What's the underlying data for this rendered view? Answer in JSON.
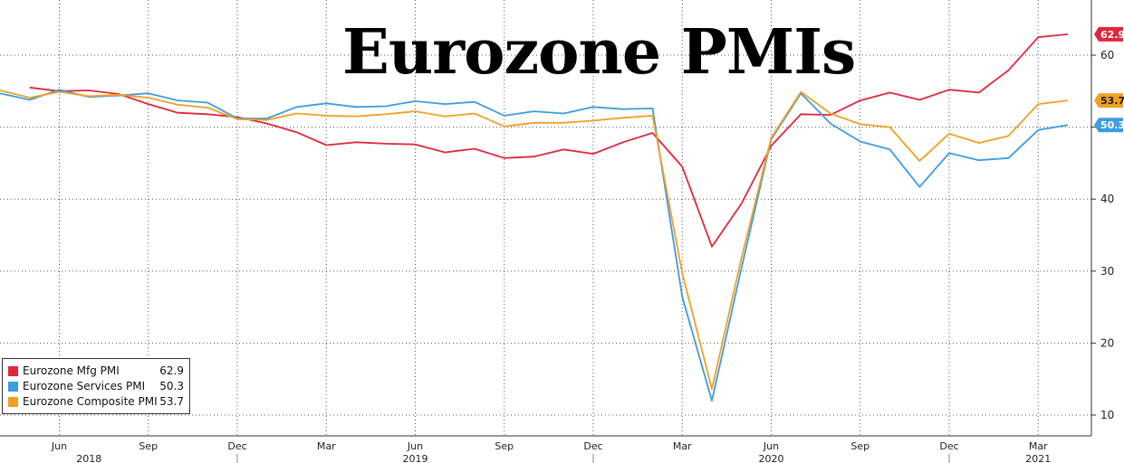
{
  "chart_data": {
    "type": "line",
    "title": "Eurozone PMIs",
    "ylim": [
      5,
      68
    ],
    "y_ticks": [
      10,
      20,
      30,
      40,
      50,
      60
    ],
    "x_month_ticks": [
      {
        "label": "Jun",
        "x": "2018-06"
      },
      {
        "label": "Sep",
        "x": "2018-09"
      },
      {
        "label": "Dec",
        "x": "2018-12"
      },
      {
        "label": "Mar",
        "x": "2019-03"
      },
      {
        "label": "Jun",
        "x": "2019-06"
      },
      {
        "label": "Sep",
        "x": "2019-09"
      },
      {
        "label": "Dec",
        "x": "2019-12"
      },
      {
        "label": "Mar",
        "x": "2020-03"
      },
      {
        "label": "Jun",
        "x": "2020-06"
      },
      {
        "label": "Sep",
        "x": "2020-09"
      },
      {
        "label": "Dec",
        "x": "2020-12"
      },
      {
        "label": "Mar",
        "x": "2021-03"
      }
    ],
    "x_year_ticks": [
      {
        "label": "2018",
        "x": "2018-07"
      },
      {
        "label": "2019",
        "x": "2019-06"
      },
      {
        "label": "2020",
        "x": "2020-06"
      },
      {
        "label": "2021",
        "x": "2021-03"
      }
    ],
    "grid": true,
    "legend_position": "bottom-left",
    "x": [
      "2018-04",
      "2018-05",
      "2018-06",
      "2018-07",
      "2018-08",
      "2018-09",
      "2018-10",
      "2018-11",
      "2018-12",
      "2019-01",
      "2019-02",
      "2019-03",
      "2019-04",
      "2019-05",
      "2019-06",
      "2019-07",
      "2019-08",
      "2019-09",
      "2019-10",
      "2019-11",
      "2019-12",
      "2020-01",
      "2020-02",
      "2020-03",
      "2020-04",
      "2020-05",
      "2020-06",
      "2020-07",
      "2020-08",
      "2020-09",
      "2020-10",
      "2020-11",
      "2020-12",
      "2021-01",
      "2021-02",
      "2021-03",
      "2021-04"
    ],
    "series": [
      {
        "name": "Eurozone Mfg PMI",
        "last": "62.9",
        "color": "#e0283c",
        "values": [
          null,
          55.5,
          55.0,
          55.1,
          54.6,
          53.2,
          52.0,
          51.8,
          51.4,
          50.5,
          49.3,
          47.5,
          47.9,
          47.7,
          47.6,
          46.5,
          47.0,
          45.7,
          45.9,
          46.9,
          46.3,
          47.9,
          49.2,
          44.5,
          33.4,
          39.4,
          47.4,
          51.8,
          51.7,
          53.7,
          54.8,
          53.8,
          55.2,
          54.8,
          57.9,
          62.5,
          62.9
        ]
      },
      {
        "name": "Eurozone Services PMI",
        "last": "50.3",
        "color": "#3c9de0",
        "values": [
          54.7,
          53.8,
          55.2,
          54.2,
          54.4,
          54.7,
          53.7,
          53.4,
          51.2,
          51.2,
          52.8,
          53.3,
          52.8,
          52.9,
          53.6,
          53.2,
          53.5,
          51.6,
          52.2,
          51.9,
          52.8,
          52.5,
          52.6,
          26.4,
          12.0,
          30.5,
          48.3,
          54.7,
          50.5,
          48.0,
          46.9,
          41.7,
          46.4,
          45.4,
          45.7,
          49.6,
          50.3
        ]
      },
      {
        "name": "Eurozone Composite PMI",
        "last": "53.7",
        "color": "#f2a024",
        "values": [
          55.1,
          54.1,
          54.9,
          54.3,
          54.5,
          54.1,
          53.1,
          52.7,
          51.1,
          51.0,
          51.9,
          51.6,
          51.5,
          51.8,
          52.2,
          51.5,
          51.9,
          50.1,
          50.6,
          50.6,
          50.9,
          51.3,
          51.6,
          29.7,
          13.6,
          31.9,
          48.5,
          54.9,
          51.9,
          50.4,
          50.0,
          45.3,
          49.1,
          47.8,
          48.8,
          53.2,
          53.7
        ]
      }
    ]
  }
}
